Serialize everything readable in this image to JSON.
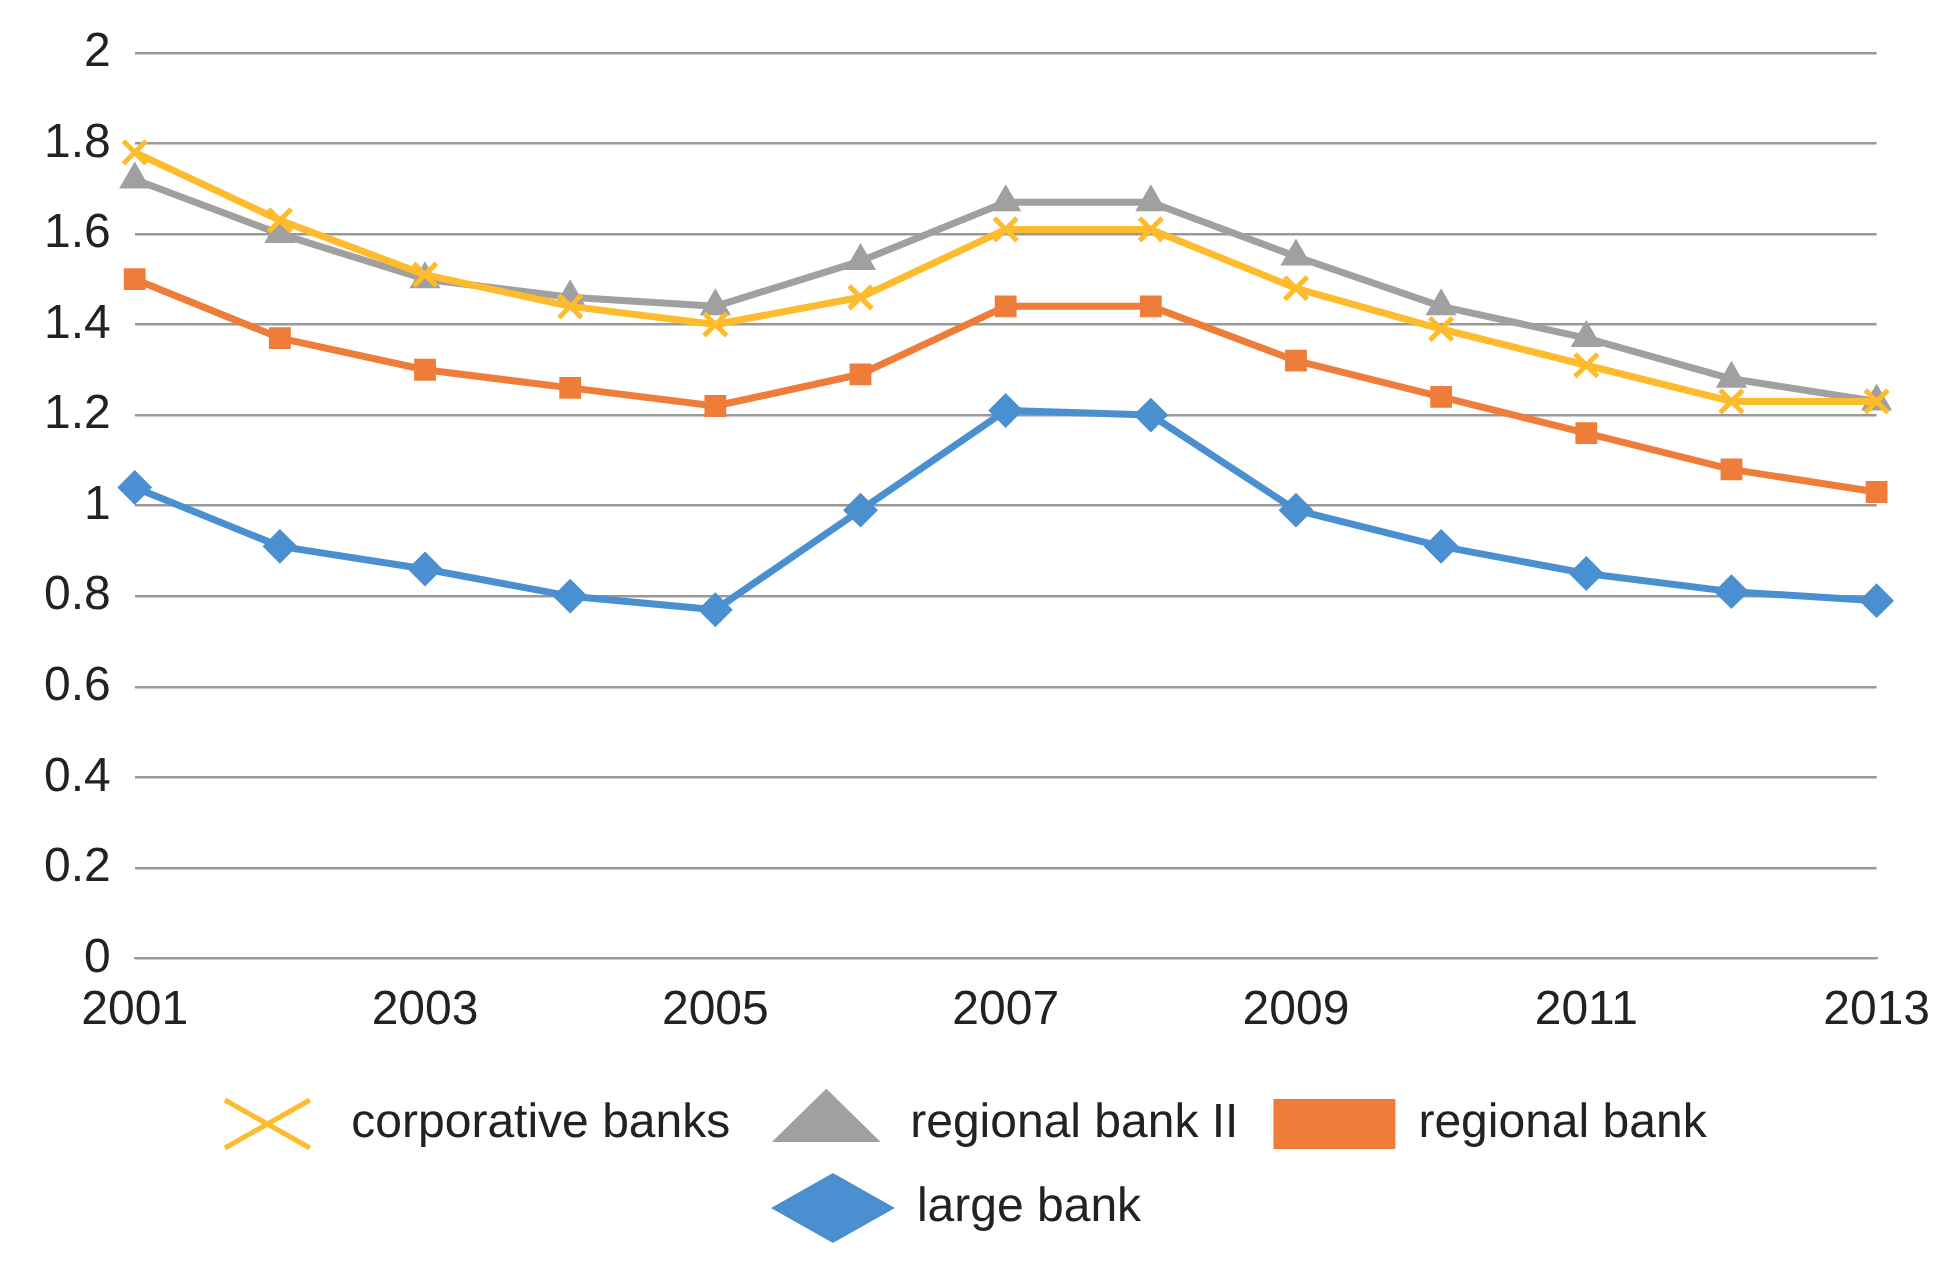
{
  "chart_data": {
    "type": "line",
    "categories": [
      "2001",
      null,
      "2003",
      null,
      "2005",
      null,
      "2007",
      null,
      "2009",
      null,
      "2011",
      null,
      "2013"
    ],
    "series": [
      {
        "name": "large bank",
        "color": "#4a8fd0",
        "marker": "diamond",
        "values": [
          1.04,
          0.91,
          0.86,
          0.8,
          0.77,
          0.99,
          1.21,
          1.2,
          0.99,
          0.91,
          0.85,
          0.81,
          0.79
        ]
      },
      {
        "name": "regional bank",
        "color": "#ee7d3a",
        "marker": "square",
        "values": [
          1.5,
          1.37,
          1.3,
          1.26,
          1.22,
          1.29,
          1.44,
          1.44,
          1.32,
          1.24,
          1.16,
          1.08,
          1.03
        ]
      },
      {
        "name": "regional bank II",
        "color": "#a0a0a0",
        "marker": "triangle",
        "values": [
          1.72,
          1.6,
          1.5,
          1.46,
          1.44,
          1.54,
          1.67,
          1.67,
          1.55,
          1.44,
          1.37,
          1.28,
          1.23
        ]
      },
      {
        "name": "corporative banks",
        "color": "#fdbb2d",
        "marker": "cross",
        "values": [
          1.78,
          1.63,
          1.51,
          1.44,
          1.4,
          1.46,
          1.61,
          1.61,
          1.48,
          1.39,
          1.31,
          1.23,
          1.23
        ]
      }
    ],
    "ylim": [
      0,
      2
    ],
    "yticks": [
      0,
      0.2,
      0.4,
      0.6,
      0.8,
      1,
      1.2,
      1.4,
      1.6,
      1.8,
      2
    ],
    "grid": "y",
    "legend": "bottom",
    "line_style": "solid"
  }
}
